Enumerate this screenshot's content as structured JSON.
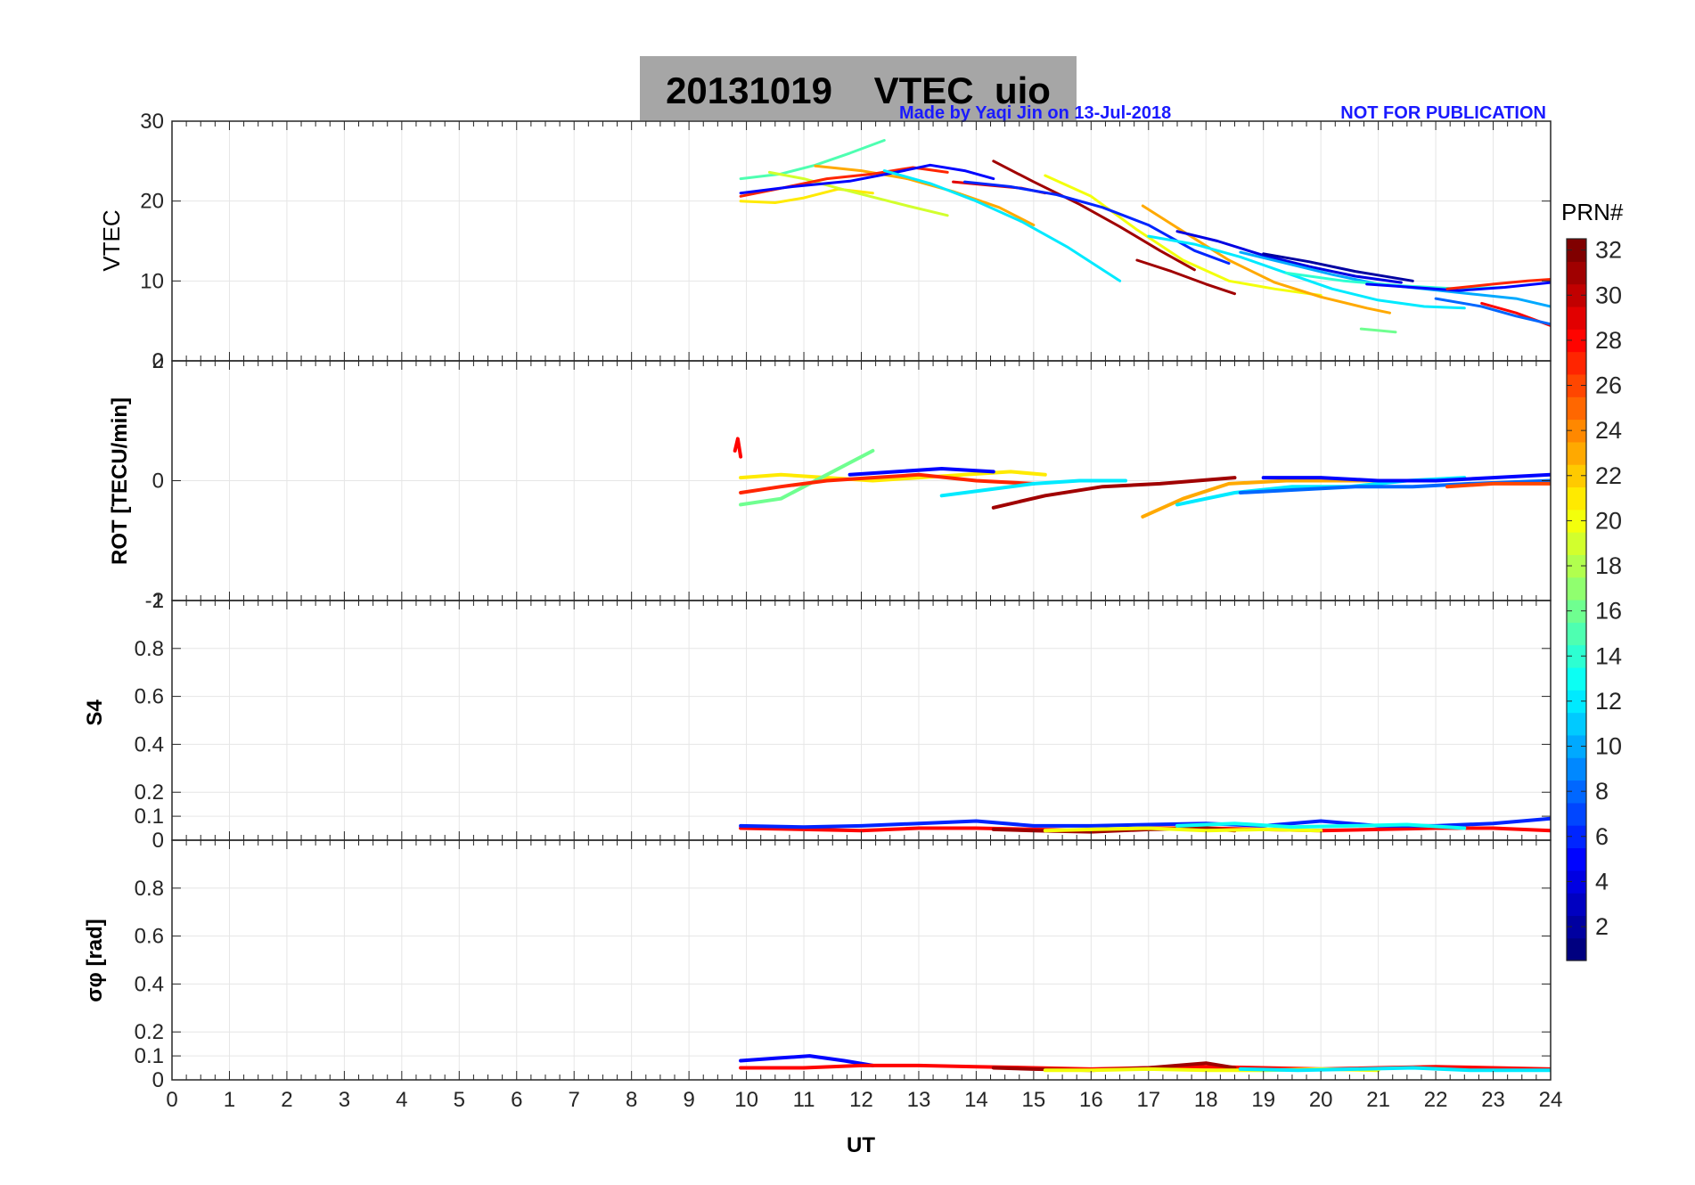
{
  "header": {
    "title": "20131019    VTEC  uio",
    "credit": "Made by Yaqi Jin on 13-Jul-2018",
    "notice": "NOT FOR PUBLICATION"
  },
  "colorbar": {
    "label": "PRN#",
    "ticks": [
      "2",
      "4",
      "6",
      "8",
      "10",
      "12",
      "14",
      "16",
      "18",
      "20",
      "22",
      "24",
      "26",
      "28",
      "30",
      "32"
    ],
    "tick_values": [
      2,
      4,
      6,
      8,
      10,
      12,
      14,
      16,
      18,
      20,
      22,
      24,
      26,
      28,
      30,
      32
    ],
    "range": [
      1,
      32
    ],
    "colormap": "jet"
  },
  "chart_data": [
    {
      "type": "line",
      "panel": "vtec",
      "ylabel": "VTEC",
      "xlim": [
        0,
        24
      ],
      "ylim": [
        0,
        30
      ],
      "yticks": [
        0,
        10,
        20,
        30
      ],
      "ytick_labels": [
        "0",
        "10",
        "20",
        "30"
      ],
      "grid": true,
      "series": [
        {
          "prn": 21,
          "x": [
            9.9,
            10.5,
            11.0,
            11.6,
            12.2
          ],
          "y": [
            20.0,
            19.8,
            20.4,
            21.5,
            21.0
          ]
        },
        {
          "prn": 15,
          "x": [
            9.9,
            10.6,
            11.2,
            11.8,
            12.4
          ],
          "y": [
            22.8,
            23.4,
            24.5,
            26.0,
            27.6
          ]
        },
        {
          "prn": 19,
          "x": [
            10.4,
            11.0,
            11.6,
            12.2,
            12.8,
            13.5
          ],
          "y": [
            23.6,
            22.8,
            21.6,
            20.5,
            19.4,
            18.2
          ]
        },
        {
          "prn": 23,
          "x": [
            11.2,
            12.0,
            12.8,
            13.6,
            14.4,
            15.0
          ],
          "y": [
            24.4,
            23.8,
            22.8,
            21.2,
            19.2,
            17.0
          ]
        },
        {
          "prn": 27,
          "x": [
            9.9,
            10.6,
            11.4,
            12.2,
            12.9,
            13.5
          ],
          "y": [
            20.6,
            21.6,
            22.8,
            23.4,
            24.2,
            23.6
          ]
        },
        {
          "prn": 5,
          "x": [
            9.9,
            10.8,
            11.8,
            12.6,
            13.2,
            13.8,
            14.3
          ],
          "y": [
            21.0,
            21.8,
            22.5,
            23.6,
            24.5,
            23.8,
            22.8
          ]
        },
        {
          "prn": 12,
          "x": [
            12.4,
            13.2,
            14.0,
            14.8,
            15.6,
            16.5
          ],
          "y": [
            23.8,
            22.2,
            20.0,
            17.4,
            14.2,
            10.0
          ]
        },
        {
          "prn": 29,
          "x": [
            13.6,
            14.2,
            14.8,
            15.2
          ],
          "y": [
            22.4,
            22.0,
            21.6,
            21.0
          ]
        },
        {
          "prn": 31,
          "x": [
            14.3,
            15.0,
            15.8,
            16.5,
            17.2,
            17.8
          ],
          "y": [
            25.0,
            22.4,
            19.6,
            16.8,
            13.8,
            11.4
          ]
        },
        {
          "prn": 20,
          "x": [
            15.2,
            16.0,
            16.8,
            17.6,
            18.4,
            19.2,
            20.0
          ],
          "y": [
            23.2,
            20.6,
            16.4,
            12.6,
            10.0,
            9.0,
            8.2
          ]
        },
        {
          "prn": 6,
          "x": [
            13.8,
            14.6,
            15.4,
            16.2,
            17.0,
            17.8,
            18.4
          ],
          "y": [
            22.4,
            21.8,
            20.8,
            19.2,
            17.0,
            13.8,
            12.2
          ]
        },
        {
          "prn": 23,
          "x": [
            16.9,
            17.6,
            18.4,
            19.2,
            20.0,
            20.8,
            21.2
          ],
          "y": [
            19.4,
            16.2,
            12.6,
            9.8,
            8.0,
            6.6,
            6.0
          ]
        },
        {
          "prn": 31,
          "x": [
            16.8,
            17.4,
            18.0,
            18.5
          ],
          "y": [
            12.6,
            11.2,
            9.6,
            8.4
          ]
        },
        {
          "prn": 12,
          "x": [
            17.0,
            17.8,
            18.6,
            19.4,
            20.2,
            21.0,
            21.8,
            22.5
          ],
          "y": [
            15.6,
            14.6,
            13.0,
            11.0,
            9.0,
            7.6,
            6.8,
            6.6
          ]
        },
        {
          "prn": 4,
          "x": [
            17.5,
            18.2,
            19.0,
            19.8,
            20.6,
            21.4
          ],
          "y": [
            16.2,
            15.0,
            13.2,
            11.8,
            10.6,
            9.8
          ]
        },
        {
          "prn": 2,
          "x": [
            19.0,
            19.8,
            20.6,
            21.6
          ],
          "y": [
            13.4,
            12.4,
            11.2,
            10.0
          ]
        },
        {
          "prn": 10,
          "x": [
            18.6,
            19.4,
            20.2,
            21.0,
            21.8,
            22.6,
            23.4,
            24.0
          ],
          "y": [
            13.6,
            12.2,
            10.8,
            9.6,
            9.0,
            8.4,
            7.8,
            6.8
          ]
        },
        {
          "prn": 14,
          "x": [
            19.4,
            20.4,
            21.4,
            22.4,
            23.2
          ],
          "y": [
            11.0,
            10.0,
            9.4,
            9.0,
            9.2
          ]
        },
        {
          "prn": 5,
          "x": [
            20.8,
            21.6,
            22.4,
            23.2,
            24.0
          ],
          "y": [
            9.6,
            9.2,
            8.8,
            9.2,
            9.8
          ]
        },
        {
          "prn": 27,
          "x": [
            22.2,
            23.0,
            23.6,
            24.0
          ],
          "y": [
            9.0,
            9.6,
            10.0,
            10.2
          ]
        },
        {
          "prn": 28,
          "x": [
            22.8,
            23.4,
            24.0
          ],
          "y": [
            7.2,
            6.0,
            4.4
          ]
        },
        {
          "prn": 8,
          "x": [
            22.0,
            22.8,
            23.4,
            24.0
          ],
          "y": [
            7.8,
            6.8,
            5.6,
            4.6
          ]
        },
        {
          "prn": 16,
          "x": [
            20.7,
            21.0,
            21.3
          ],
          "y": [
            4.0,
            3.8,
            3.6
          ]
        }
      ]
    },
    {
      "type": "line",
      "panel": "rot",
      "ylabel": "ROT [TECU/min]",
      "xlim": [
        0,
        24
      ],
      "ylim": [
        -2,
        2
      ],
      "yticks": [
        -2,
        0,
        2
      ],
      "ytick_labels": [
        "-2",
        "0",
        "2"
      ],
      "grid": true,
      "series": [
        {
          "prn": 28,
          "x": [
            9.8,
            9.85,
            9.9
          ],
          "y": [
            0.5,
            0.7,
            0.4
          ]
        },
        {
          "prn": 21,
          "x": [
            9.9,
            10.6,
            11.4,
            12.2,
            13.0,
            13.8,
            14.6,
            15.2
          ],
          "y": [
            0.05,
            0.1,
            0.05,
            0.0,
            0.05,
            0.1,
            0.15,
            0.1
          ]
        },
        {
          "prn": 16,
          "x": [
            9.9,
            10.6,
            11.4,
            12.2
          ],
          "y": [
            -0.4,
            -0.3,
            0.1,
            0.5
          ]
        },
        {
          "prn": 27,
          "x": [
            9.9,
            10.6,
            11.4,
            12.2,
            13.0,
            14.0,
            15.0
          ],
          "y": [
            -0.2,
            -0.1,
            0.0,
            0.05,
            0.1,
            0.0,
            -0.05
          ]
        },
        {
          "prn": 5,
          "x": [
            11.8,
            12.6,
            13.4,
            14.3
          ],
          "y": [
            0.1,
            0.15,
            0.2,
            0.15
          ]
        },
        {
          "prn": 12,
          "x": [
            13.4,
            14.2,
            15.0,
            15.8,
            16.6
          ],
          "y": [
            -0.25,
            -0.15,
            -0.05,
            0.0,
            0.0
          ]
        },
        {
          "prn": 31,
          "x": [
            14.3,
            15.2,
            16.2,
            17.2,
            18.5
          ],
          "y": [
            -0.45,
            -0.25,
            -0.1,
            -0.05,
            0.05
          ]
        },
        {
          "prn": 23,
          "x": [
            16.9,
            17.6,
            18.4,
            19.4,
            20.4,
            21.2
          ],
          "y": [
            -0.6,
            -0.3,
            -0.05,
            0.0,
            0.0,
            0.0
          ]
        },
        {
          "prn": 12,
          "x": [
            17.5,
            18.5,
            19.5,
            20.5,
            21.5,
            22.5
          ],
          "y": [
            -0.4,
            -0.2,
            -0.1,
            -0.1,
            0.0,
            0.05
          ]
        },
        {
          "prn": 8,
          "x": [
            18.6,
            19.6,
            20.6,
            21.6,
            22.6,
            24.0
          ],
          "y": [
            -0.2,
            -0.15,
            -0.1,
            -0.1,
            -0.05,
            0.0
          ]
        },
        {
          "prn": 26,
          "x": [
            22.2,
            23.0,
            24.0
          ],
          "y": [
            -0.1,
            -0.05,
            -0.05
          ]
        },
        {
          "prn": 5,
          "x": [
            19.0,
            20.0,
            21.0,
            22.0,
            23.0,
            24.0
          ],
          "y": [
            0.05,
            0.05,
            0.0,
            0.0,
            0.05,
            0.1
          ]
        }
      ]
    },
    {
      "type": "line",
      "panel": "s4",
      "ylabel": "S4",
      "xlim": [
        0,
        24
      ],
      "ylim": [
        0,
        1
      ],
      "yticks": [
        0,
        0.1,
        0.2,
        0.4,
        0.6,
        0.8,
        1
      ],
      "ytick_labels": [
        "0",
        "0.1",
        "0.2",
        "0.4",
        "0.6",
        "0.8",
        "1"
      ],
      "grid": true,
      "series": [
        {
          "prn": 28,
          "x": [
            9.9,
            11,
            12,
            13,
            14,
            15,
            16,
            17,
            18,
            19,
            20,
            21,
            22,
            23,
            24
          ],
          "y": [
            0.05,
            0.045,
            0.04,
            0.05,
            0.05,
            0.045,
            0.04,
            0.05,
            0.05,
            0.045,
            0.04,
            0.045,
            0.05,
            0.05,
            0.04
          ]
        },
        {
          "prn": 6,
          "x": [
            9.9,
            11,
            12,
            13,
            14,
            15,
            16,
            17,
            18,
            19,
            20,
            21,
            22,
            23,
            24
          ],
          "y": [
            0.06,
            0.055,
            0.06,
            0.07,
            0.08,
            0.06,
            0.06,
            0.065,
            0.07,
            0.06,
            0.08,
            0.06,
            0.06,
            0.07,
            0.09
          ]
        },
        {
          "prn": 31,
          "x": [
            14.3,
            15,
            16,
            17,
            18,
            18.5
          ],
          "y": [
            0.045,
            0.04,
            0.035,
            0.045,
            0.05,
            0.04
          ]
        },
        {
          "prn": 20,
          "x": [
            15.2,
            16,
            17,
            18,
            19,
            20
          ],
          "y": [
            0.04,
            0.045,
            0.05,
            0.04,
            0.045,
            0.04
          ]
        },
        {
          "prn": 13,
          "x": [
            17.5,
            18.5,
            19.5,
            20.5,
            21.5,
            22.5
          ],
          "y": [
            0.06,
            0.07,
            0.055,
            0.06,
            0.065,
            0.05
          ]
        }
      ]
    },
    {
      "type": "line",
      "panel": "sigma_phi",
      "ylabel": "σφ [rad]",
      "xlabel": "UT",
      "xlim": [
        0,
        24
      ],
      "ylim": [
        0,
        1
      ],
      "xticks": [
        0,
        1,
        2,
        3,
        4,
        5,
        6,
        7,
        8,
        9,
        10,
        11,
        12,
        13,
        14,
        15,
        16,
        17,
        18,
        19,
        20,
        21,
        22,
        23,
        24
      ],
      "xtick_labels": [
        "0",
        "1",
        "2",
        "3",
        "4",
        "5",
        "6",
        "7",
        "8",
        "9",
        "10",
        "11",
        "12",
        "13",
        "14",
        "15",
        "16",
        "17",
        "18",
        "19",
        "20",
        "21",
        "22",
        "23",
        "24"
      ],
      "yticks": [
        0,
        0.1,
        0.2,
        0.4,
        0.6,
        0.8
      ],
      "ytick_labels": [
        "0",
        "0.1",
        "0.2",
        "0.4",
        "0.6",
        "0.8"
      ],
      "grid": true,
      "series": [
        {
          "prn": 5,
          "x": [
            9.9,
            10.5,
            11.1,
            11.7,
            12.2
          ],
          "y": [
            0.08,
            0.09,
            0.1,
            0.08,
            0.06
          ]
        },
        {
          "prn": 28,
          "x": [
            9.9,
            11,
            12,
            13,
            14,
            15,
            16,
            17,
            18,
            19,
            20,
            21,
            22,
            23,
            24
          ],
          "y": [
            0.05,
            0.05,
            0.06,
            0.06,
            0.055,
            0.05,
            0.045,
            0.05,
            0.055,
            0.05,
            0.045,
            0.05,
            0.055,
            0.05,
            0.045
          ]
        },
        {
          "prn": 31,
          "x": [
            14.3,
            15,
            16,
            17,
            18,
            18.5
          ],
          "y": [
            0.05,
            0.045,
            0.04,
            0.05,
            0.07,
            0.05
          ]
        },
        {
          "prn": 20,
          "x": [
            15.2,
            16,
            17,
            18,
            19,
            20,
            21
          ],
          "y": [
            0.04,
            0.04,
            0.045,
            0.04,
            0.04,
            0.045,
            0.04
          ]
        },
        {
          "prn": 12,
          "x": [
            18.6,
            19.6,
            20.6,
            21.6,
            22.6,
            24.0
          ],
          "y": [
            0.045,
            0.04,
            0.045,
            0.05,
            0.04,
            0.04
          ]
        }
      ]
    }
  ]
}
